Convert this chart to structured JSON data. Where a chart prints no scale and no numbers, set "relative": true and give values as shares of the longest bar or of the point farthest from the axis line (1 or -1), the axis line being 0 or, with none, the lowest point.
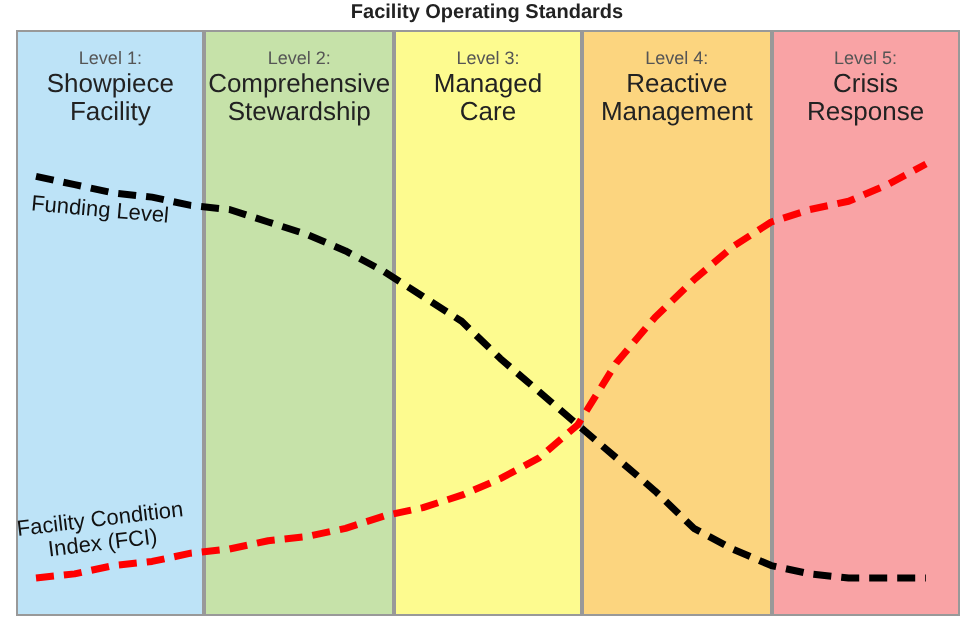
{
  "chart_data": {
    "type": "line",
    "title": "Facility Operating Standards",
    "relative": true,
    "line_style": "dashed",
    "marker": "none",
    "categories": [
      null,
      null,
      null,
      null,
      null,
      null,
      null,
      null,
      null,
      null,
      null,
      null,
      null,
      null,
      null,
      null,
      null,
      null,
      null,
      null,
      null,
      null,
      null,
      null
    ],
    "series": [
      {
        "name": "Funding Level",
        "color": "#000000",
        "values": [
          0.97,
          0.95,
          0.93,
          0.92,
          0.9,
          0.89,
          0.86,
          0.83,
          0.79,
          0.74,
          0.68,
          0.62,
          0.53,
          0.45,
          0.37,
          0.29,
          0.21,
          0.12,
          0.07,
          0.03,
          0.01,
          0,
          0,
          0
        ]
      },
      {
        "name": "Facility Condition Index (FCI)",
        "color": "#ff0000",
        "values": [
          0,
          0.01,
          0.03,
          0.04,
          0.06,
          0.07,
          0.09,
          0.1,
          0.12,
          0.15,
          0.17,
          0.2,
          0.24,
          0.29,
          0.37,
          0.52,
          0.63,
          0.72,
          0.8,
          0.86,
          0.89,
          0.91,
          0.95,
          1
        ]
      }
    ],
    "annotations": [
      "Level 1:\nShowpiece\nFacility",
      "Level 2:\nComprehensive\nStewardship",
      "Level 3:\nManaged\nCare",
      "Level 4:\nReactive\nManagement",
      "Level 5:\nCrisis\nResponse"
    ]
  }
}
